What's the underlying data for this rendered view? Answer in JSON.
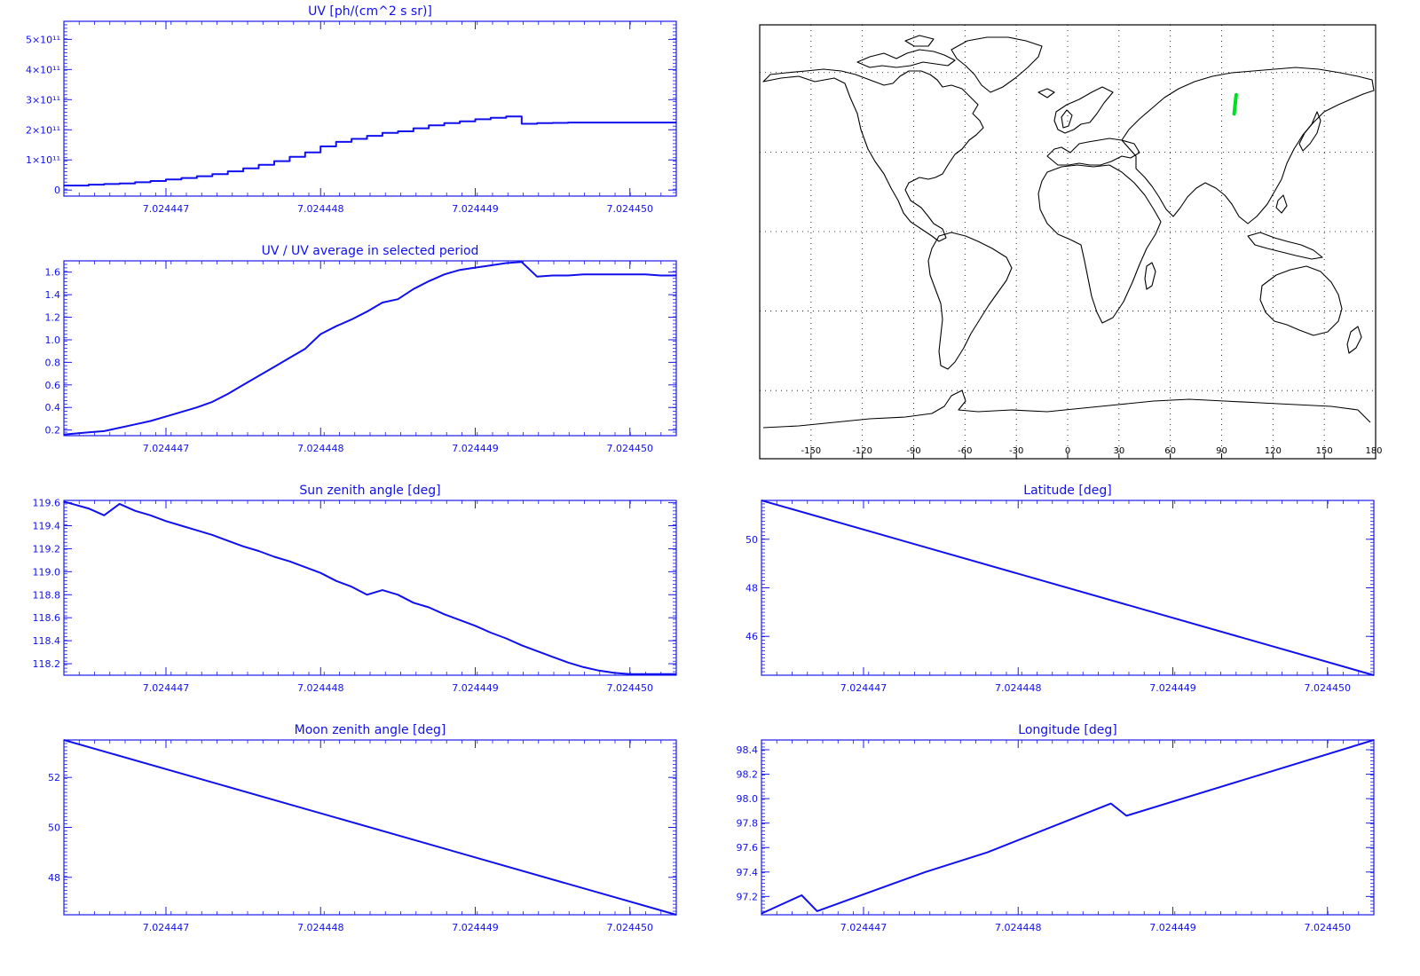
{
  "colors": {
    "axis": "#1a1aee",
    "line": "#1010ee",
    "map": "#000000",
    "track": "#00e020"
  },
  "chart_data": [
    {
      "id": "uv",
      "type": "line",
      "step": true,
      "title": "UV [ph/(cm^2 s sr)]",
      "xlim": [
        7.02444634,
        7.0244503
      ],
      "ylim": [
        -20000000000,
        560000000000
      ],
      "xticks": [
        "7.024447",
        "7.024448",
        "7.024449",
        "7.024450"
      ],
      "xtick_values": [
        7.024447,
        7.024448,
        7.024449,
        7.02445
      ],
      "yticks": [
        "0",
        "1×10¹¹",
        "2×10¹¹",
        "3×10¹¹",
        "4×10¹¹",
        "5×10¹¹"
      ],
      "ytick_values": [
        0,
        100000000000,
        200000000000,
        300000000000,
        400000000000,
        500000000000
      ],
      "x": [
        7.02444634,
        7.0244465,
        7.0244466,
        7.0244467,
        7.0244468,
        7.0244469,
        7.024447,
        7.0244471,
        7.0244472,
        7.0244473,
        7.0244474,
        7.0244475,
        7.0244476,
        7.0244477,
        7.0244478,
        7.0244479,
        7.024448,
        7.0244481,
        7.0244482,
        7.0244483,
        7.0244484,
        7.0244485,
        7.0244486,
        7.0244487,
        7.0244488,
        7.0244489,
        7.024449,
        7.0244491,
        7.0244492,
        7.0244493,
        7.0244494,
        7.0244495,
        7.0244496,
        7.0244497,
        7.0244498,
        7.0244499,
        7.02445,
        7.0244501,
        7.0244502,
        7.0244503
      ],
      "y": [
        15000000000,
        18000000000,
        20000000000,
        22000000000,
        26000000000,
        30000000000,
        35000000000,
        40000000000,
        46000000000,
        53000000000,
        62000000000,
        72000000000,
        84000000000,
        96000000000,
        110000000000,
        125000000000,
        145000000000,
        160000000000,
        170000000000,
        180000000000,
        190000000000,
        195000000000,
        205000000000,
        215000000000,
        222000000000,
        228000000000,
        235000000000,
        240000000000,
        244000000000,
        220000000000,
        222000000000,
        223000000000,
        224000000000,
        224000000000,
        224000000000,
        224000000000,
        224000000000,
        224000000000,
        224000000000,
        224000000000
      ]
    },
    {
      "id": "uv_ratio",
      "type": "line",
      "title": "UV / UV average in selected period",
      "xlim": [
        7.02444634,
        7.0244503
      ],
      "ylim": [
        0.15,
        1.7
      ],
      "xticks": [
        "7.024447",
        "7.024448",
        "7.024449",
        "7.024450"
      ],
      "xtick_values": [
        7.024447,
        7.024448,
        7.024449,
        7.02445
      ],
      "yticks": [
        "0.2",
        "0.4",
        "0.6",
        "0.8",
        "1.0",
        "1.2",
        "1.4",
        "1.6"
      ],
      "ytick_values": [
        0.2,
        0.4,
        0.6,
        0.8,
        1.0,
        1.2,
        1.4,
        1.6
      ],
      "x": [
        7.02444634,
        7.0244465,
        7.0244466,
        7.0244467,
        7.0244468,
        7.0244469,
        7.024447,
        7.0244471,
        7.0244472,
        7.0244473,
        7.0244474,
        7.0244475,
        7.0244476,
        7.0244477,
        7.0244478,
        7.0244479,
        7.024448,
        7.0244481,
        7.0244482,
        7.0244483,
        7.0244484,
        7.0244485,
        7.0244486,
        7.0244487,
        7.0244488,
        7.0244489,
        7.024449,
        7.0244491,
        7.0244492,
        7.0244493,
        7.0244494,
        7.0244495,
        7.0244496,
        7.0244497,
        7.0244498,
        7.0244499,
        7.02445,
        7.0244501,
        7.0244502,
        7.0244503
      ],
      "y": [
        0.16,
        0.18,
        0.19,
        0.22,
        0.25,
        0.28,
        0.32,
        0.36,
        0.4,
        0.45,
        0.52,
        0.6,
        0.68,
        0.76,
        0.84,
        0.92,
        1.05,
        1.12,
        1.18,
        1.25,
        1.33,
        1.36,
        1.45,
        1.52,
        1.58,
        1.62,
        1.64,
        1.66,
        1.68,
        1.69,
        1.56,
        1.57,
        1.57,
        1.58,
        1.58,
        1.58,
        1.58,
        1.58,
        1.57,
        1.57
      ]
    },
    {
      "id": "sun_zenith",
      "type": "line",
      "title": "Sun zenith angle [deg]",
      "xlim": [
        7.02444634,
        7.0244503
      ],
      "ylim": [
        118.1,
        119.62
      ],
      "xticks": [
        "7.024447",
        "7.024448",
        "7.024449",
        "7.024450"
      ],
      "xtick_values": [
        7.024447,
        7.024448,
        7.024449,
        7.02445
      ],
      "yticks": [
        "118.2",
        "118.4",
        "118.6",
        "118.8",
        "119.0",
        "119.2",
        "119.4",
        "119.6"
      ],
      "ytick_values": [
        118.2,
        118.4,
        118.6,
        118.8,
        119.0,
        119.2,
        119.4,
        119.6
      ],
      "x": [
        7.02444634,
        7.0244465,
        7.0244466,
        7.0244467,
        7.0244468,
        7.0244469,
        7.024447,
        7.0244471,
        7.0244472,
        7.0244473,
        7.0244474,
        7.0244475,
        7.0244476,
        7.0244477,
        7.0244478,
        7.0244479,
        7.024448,
        7.0244481,
        7.0244482,
        7.0244483,
        7.0244484,
        7.0244485,
        7.0244486,
        7.0244487,
        7.0244488,
        7.0244489,
        7.024449,
        7.0244491,
        7.0244492,
        7.0244493,
        7.0244494,
        7.0244495,
        7.0244496,
        7.0244497,
        7.0244498,
        7.0244499,
        7.02445,
        7.0244501,
        7.0244502,
        7.0244503
      ],
      "y": [
        119.61,
        119.55,
        119.49,
        119.59,
        119.53,
        119.49,
        119.44,
        119.4,
        119.36,
        119.32,
        119.27,
        119.22,
        119.18,
        119.13,
        119.09,
        119.04,
        118.99,
        118.92,
        118.87,
        118.8,
        118.84,
        118.8,
        118.73,
        118.69,
        118.63,
        118.58,
        118.53,
        118.47,
        118.42,
        118.36,
        118.31,
        118.26,
        118.21,
        118.17,
        118.14,
        118.12,
        118.11,
        118.11,
        118.11,
        118.11
      ]
    },
    {
      "id": "latitude",
      "type": "line",
      "title": "Latitude [deg]",
      "xlim": [
        7.02444634,
        7.0244503
      ],
      "ylim": [
        44.4,
        51.6
      ],
      "xticks": [
        "7.024447",
        "7.024448",
        "7.024449",
        "7.024450"
      ],
      "xtick_values": [
        7.024447,
        7.024448,
        7.024449,
        7.02445
      ],
      "yticks": [
        "46",
        "48",
        "50"
      ],
      "ytick_values": [
        46,
        48,
        50
      ],
      "x": [
        7.02444634,
        7.0244503
      ],
      "y": [
        51.6,
        44.4
      ]
    },
    {
      "id": "moon_zenith",
      "type": "line",
      "title": "Moon zenith angle [deg]",
      "xlim": [
        7.02444634,
        7.0244503
      ],
      "ylim": [
        46.5,
        53.5
      ],
      "xticks": [
        "7.024447",
        "7.024448",
        "7.024449",
        "7.024450"
      ],
      "xtick_values": [
        7.024447,
        7.024448,
        7.024449,
        7.02445
      ],
      "yticks": [
        "48",
        "50",
        "52"
      ],
      "ytick_values": [
        48,
        50,
        52
      ],
      "x": [
        7.02444634,
        7.0244503
      ],
      "y": [
        53.5,
        46.5
      ]
    },
    {
      "id": "longitude",
      "type": "line",
      "title": "Longitude [deg]",
      "xlim": [
        7.02444634,
        7.0244503
      ],
      "ylim": [
        97.05,
        98.48
      ],
      "xticks": [
        "7.024447",
        "7.024448",
        "7.024449",
        "7.024450"
      ],
      "xtick_values": [
        7.024447,
        7.024448,
        7.024449,
        7.02445
      ],
      "yticks": [
        "97.2",
        "97.4",
        "97.6",
        "97.8",
        "98.0",
        "98.2",
        "98.4"
      ],
      "ytick_values": [
        97.2,
        97.4,
        97.6,
        97.8,
        98.0,
        98.2,
        98.4
      ],
      "x": [
        7.02444634,
        7.0244466,
        7.0244467,
        7.0244474,
        7.0244478,
        7.0244486,
        7.0244487,
        7.0244503
      ],
      "y": [
        97.06,
        97.21,
        97.08,
        97.4,
        97.56,
        97.96,
        97.86,
        98.48
      ]
    }
  ],
  "map": {
    "x_labels": [
      "-150",
      "-120",
      "-90",
      "-60",
      "-30",
      "0",
      "30",
      "60",
      "90",
      "120",
      "150",
      "180"
    ],
    "x_values": [
      -150,
      -120,
      -90,
      -60,
      -30,
      0,
      30,
      60,
      90,
      120,
      150,
      180
    ],
    "grid_lat": [
      -60,
      -30,
      0,
      30,
      60
    ],
    "track": {
      "lon": [
        98.5,
        97.3
      ],
      "lat": [
        51.6,
        44.4
      ]
    }
  }
}
